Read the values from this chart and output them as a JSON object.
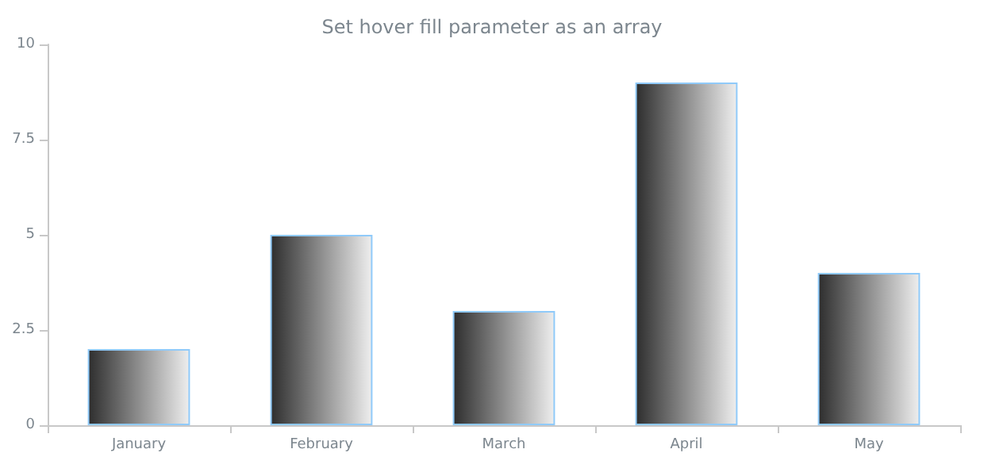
{
  "chart_data": {
    "type": "bar",
    "title": "Set hover fill parameter as an array",
    "categories": [
      "January",
      "February",
      "March",
      "April",
      "May"
    ],
    "values": [
      2,
      5,
      3,
      9,
      4
    ],
    "color": "#90caf9",
    "ylim": [
      0,
      10
    ],
    "yticks": [
      0,
      2.5,
      5,
      7.5,
      10
    ],
    "grid": false
  }
}
